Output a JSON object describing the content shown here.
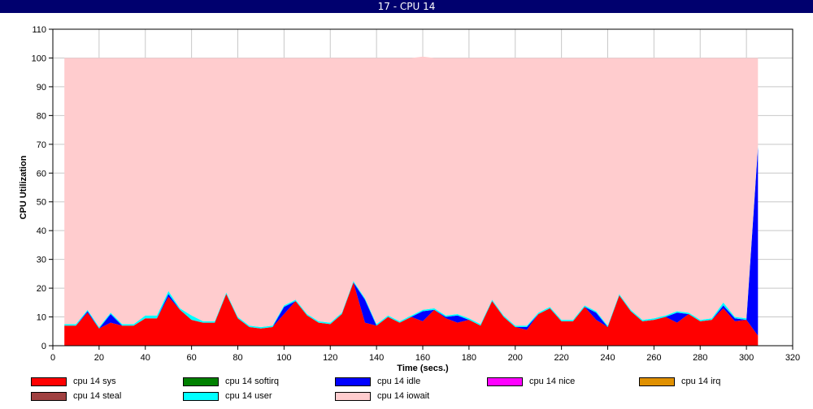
{
  "window": {
    "title": "17 - CPU 14"
  },
  "chart_data": {
    "type": "area",
    "stacked": true,
    "title": "17 - CPU 14",
    "xlabel": "Time (secs.)",
    "ylabel": "CPU Utilization",
    "xlim": [
      0,
      320
    ],
    "ylim": [
      0,
      110
    ],
    "xticks": [
      0,
      20,
      40,
      60,
      80,
      100,
      120,
      140,
      160,
      180,
      200,
      220,
      240,
      260,
      280,
      300,
      320
    ],
    "yticks": [
      0,
      10,
      20,
      30,
      40,
      50,
      60,
      70,
      80,
      90,
      100,
      110
    ],
    "grid": true,
    "legend_position": "bottom",
    "x": [
      5,
      10,
      15,
      20,
      25,
      30,
      35,
      40,
      45,
      50,
      55,
      60,
      65,
      70,
      75,
      80,
      85,
      90,
      95,
      100,
      105,
      110,
      115,
      120,
      125,
      130,
      135,
      140,
      145,
      150,
      155,
      160,
      165,
      170,
      175,
      180,
      185,
      190,
      195,
      200,
      205,
      210,
      215,
      220,
      225,
      230,
      235,
      240,
      245,
      250,
      255,
      260,
      265,
      270,
      275,
      280,
      285,
      290,
      295,
      300,
      305
    ],
    "series": [
      {
        "name": "cpu 14 sys",
        "color": "#ff0000",
        "values": [
          7,
          7,
          11.5,
          6,
          8,
          7,
          7,
          9.5,
          9.5,
          17,
          12.5,
          9,
          8,
          8,
          18,
          9.5,
          6.5,
          6,
          6.5,
          11,
          15.5,
          10.5,
          8,
          7.5,
          11,
          22,
          8,
          7,
          10,
          8,
          10,
          8.5,
          12.5,
          9.5,
          8,
          9,
          7,
          15.5,
          10,
          6.5,
          5.5,
          11,
          13,
          8.5,
          8.5,
          13.5,
          9,
          6.5,
          17.5,
          12,
          8.5,
          9,
          10,
          8,
          11,
          8.5,
          9,
          13,
          8.5,
          9,
          3.5
        ]
      },
      {
        "name": "cpu 14 softirq",
        "color": "#008000",
        "values": [
          0,
          0,
          0,
          0,
          0,
          0,
          0,
          0,
          0,
          0,
          0,
          0,
          0,
          0,
          0,
          0,
          0,
          0,
          0,
          0,
          0,
          0,
          0,
          0,
          0,
          0,
          0,
          0,
          0,
          0,
          0,
          0,
          0,
          0,
          0,
          0,
          0,
          0,
          0,
          0,
          0,
          0,
          0,
          0,
          0,
          0,
          0,
          0,
          0,
          0,
          0,
          0,
          0,
          0,
          0,
          0,
          0,
          0,
          0,
          0,
          0
        ]
      },
      {
        "name": "cpu 14 idle",
        "color": "#0000ff",
        "values": [
          0,
          0,
          0.5,
          0,
          3,
          0,
          0,
          0,
          0,
          1,
          0,
          0,
          0,
          0,
          0,
          0,
          0,
          0,
          0,
          2.5,
          0,
          0,
          0,
          0,
          0,
          0,
          8,
          0,
          0,
          0,
          0,
          3.5,
          0,
          0.5,
          2.5,
          0,
          0,
          0,
          0,
          0,
          1,
          0,
          0,
          0,
          0,
          0,
          2.5,
          0,
          0,
          0,
          0,
          0,
          0,
          3.5,
          0,
          0,
          0,
          1,
          1,
          0,
          65.5
        ]
      },
      {
        "name": "cpu 14 nice",
        "color": "#ff00ff",
        "values": [
          0,
          0,
          0,
          0,
          0,
          0,
          0,
          0,
          0,
          0,
          0,
          0,
          0,
          0,
          0,
          0,
          0,
          0,
          0,
          0,
          0,
          0,
          0,
          0,
          0,
          0,
          0,
          0,
          0,
          0,
          0,
          0,
          0,
          0,
          0,
          0,
          0,
          0,
          0,
          0,
          0,
          0,
          0,
          0,
          0,
          0,
          0,
          0,
          0,
          0,
          0,
          0,
          0,
          0,
          0,
          0,
          0,
          0,
          0,
          0,
          0
        ]
      },
      {
        "name": "cpu 14 irq",
        "color": "#e09000",
        "values": [
          0,
          0,
          0,
          0,
          0,
          0,
          0,
          0,
          0,
          0,
          0,
          0,
          0,
          0,
          0,
          0,
          0,
          0,
          0,
          0,
          0,
          0,
          0,
          0,
          0,
          0,
          0,
          0,
          0,
          0,
          0,
          0,
          0,
          0,
          0,
          0,
          0,
          0,
          0,
          0,
          0,
          0,
          0,
          0,
          0,
          0,
          0,
          0,
          0,
          0,
          0,
          0,
          0,
          0,
          0,
          0,
          0,
          0,
          0,
          0,
          0
        ]
      },
      {
        "name": "cpu 14 steal",
        "color": "#a04040",
        "values": [
          0,
          0,
          0,
          0,
          0,
          0,
          0,
          0,
          0,
          0,
          0,
          0,
          0,
          0,
          0,
          0,
          0,
          0,
          0,
          0,
          0,
          0,
          0,
          0,
          0,
          0,
          0,
          0,
          0,
          0,
          0,
          0,
          0,
          0,
          0,
          0,
          0,
          0,
          0,
          0,
          0,
          0,
          0,
          0,
          0,
          0,
          0,
          0,
          0,
          0,
          0,
          0,
          0,
          0,
          0,
          0,
          0,
          0,
          0,
          0,
          0
        ]
      },
      {
        "name": "cpu 14 user",
        "color": "#00ffff",
        "values": [
          0.5,
          0.5,
          0.5,
          0.5,
          0.5,
          0.5,
          0.5,
          1,
          1,
          1,
          0.5,
          1.5,
          0.5,
          0.5,
          0.5,
          0.5,
          0.5,
          0.5,
          0.5,
          0.5,
          0.5,
          0.5,
          0.5,
          0.5,
          0.5,
          0.5,
          0.5,
          0.5,
          0.5,
          0.5,
          0.5,
          0.5,
          0.5,
          0.5,
          0.5,
          0.5,
          0.5,
          0.5,
          0.5,
          0.5,
          0.5,
          0.5,
          0.5,
          0.5,
          0.5,
          0.5,
          0.5,
          0.5,
          0.5,
          0.5,
          0.5,
          0.5,
          0.5,
          0.5,
          0.5,
          0.5,
          0.5,
          1,
          0.5,
          0.5,
          0.5
        ]
      },
      {
        "name": "cpu 14 iowait",
        "color": "#ffccce",
        "values": [
          92.5,
          92.5,
          87.5,
          93.5,
          88.5,
          92.5,
          92.5,
          89.5,
          89.5,
          81,
          87,
          89.5,
          91.5,
          91.5,
          81.5,
          90,
          93,
          93.5,
          93,
          86,
          84,
          89,
          91.5,
          92,
          88.5,
          77.5,
          83.5,
          92.5,
          89.5,
          91.5,
          89.5,
          88,
          87,
          89.5,
          89,
          90.5,
          92.5,
          84,
          89.5,
          93,
          93,
          88.5,
          86.5,
          91,
          91,
          86,
          88,
          93,
          82,
          87.5,
          91,
          90.5,
          89.5,
          88,
          88.5,
          91,
          90.5,
          85,
          90,
          90.5,
          30.5
        ]
      }
    ]
  }
}
